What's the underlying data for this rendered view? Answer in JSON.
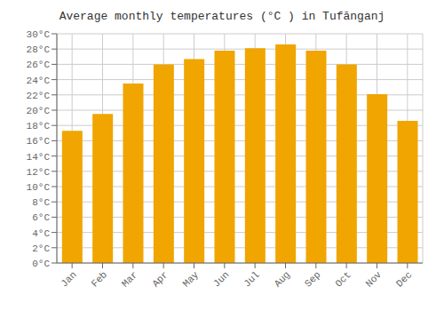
{
  "chart_data": {
    "type": "bar",
    "title": "Average monthly temperatures (°C ) in Tufānganj",
    "categories": [
      "Jan",
      "Feb",
      "Mar",
      "Apr",
      "May",
      "Jun",
      "Jul",
      "Aug",
      "Sep",
      "Oct",
      "Nov",
      "Dec"
    ],
    "values": [
      17.3,
      19.5,
      23.5,
      26.0,
      26.7,
      27.8,
      28.1,
      28.6,
      27.8,
      26.0,
      22.1,
      18.6
    ],
    "color": "#F0A500",
    "ylim": [
      0,
      30
    ],
    "yticks": [
      {
        "value": 0,
        "label": "0°C"
      },
      {
        "value": 2,
        "label": "2°C"
      },
      {
        "value": 4,
        "label": "4°C"
      },
      {
        "value": 6,
        "label": "6°C"
      },
      {
        "value": 8,
        "label": "8°C"
      },
      {
        "value": 10,
        "label": "10°C"
      },
      {
        "value": 12,
        "label": "12°C"
      },
      {
        "value": 14,
        "label": "14°C"
      },
      {
        "value": 16,
        "label": "16°C"
      },
      {
        "value": 18,
        "label": "18°C"
      },
      {
        "value": 20,
        "label": "20°C"
      },
      {
        "value": 22,
        "label": "22°C"
      },
      {
        "value": 24,
        "label": "24°C"
      },
      {
        "value": 26,
        "label": "26°C"
      },
      {
        "value": 28,
        "label": "28°C"
      },
      {
        "value": 30,
        "label": "30°C"
      }
    ],
    "grid": true
  }
}
